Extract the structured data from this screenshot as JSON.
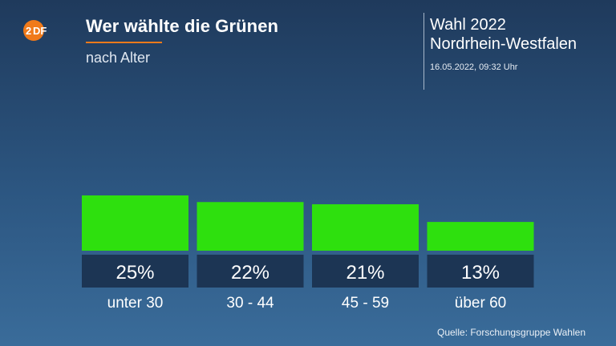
{
  "header": {
    "logo_text": "ZDF",
    "title": "Wer wählte die Grünen",
    "subtitle": "nach Alter",
    "election_line1": "Wahl 2022",
    "election_line2": "Nordrhein-Westfalen",
    "datetime": "16.05.2022, 09:32 Uhr"
  },
  "colors": {
    "bar": "#2ee00e",
    "label_box": "#1c3554",
    "accent_orange": "#f07a1a"
  },
  "chart_data": {
    "type": "bar",
    "title": "Wer wählte die Grünen",
    "subtitle": "nach Alter",
    "categories": [
      "unter 30",
      "30 - 44",
      "45 - 59",
      "über 60"
    ],
    "values": [
      25,
      22,
      21,
      13
    ],
    "value_labels": [
      "25%",
      "22%",
      "21%",
      "13%"
    ],
    "unit": "%",
    "xlabel": "",
    "ylabel": "",
    "ylim": [
      0,
      25
    ],
    "grid": false,
    "legend": "none"
  },
  "footer": {
    "source": "Quelle: Forschungsgruppe Wahlen"
  }
}
